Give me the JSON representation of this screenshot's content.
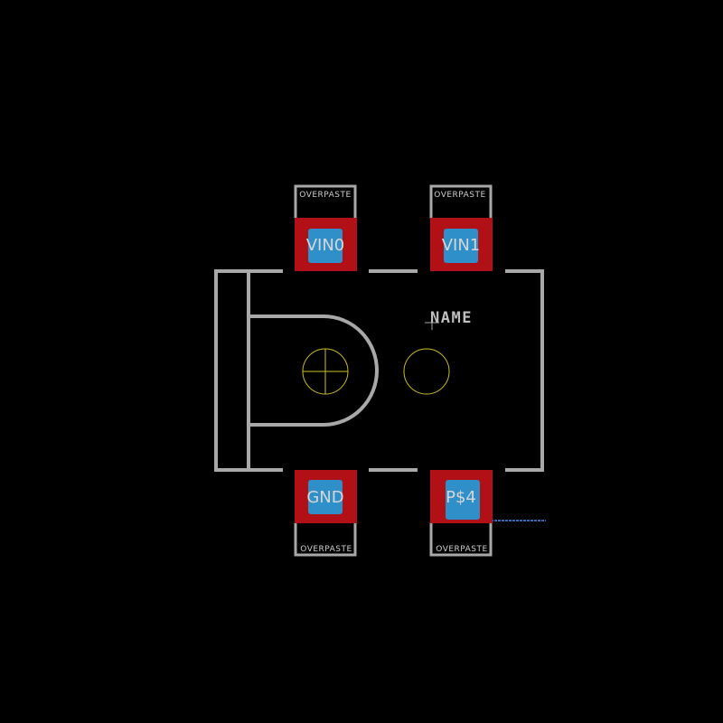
{
  "colors": {
    "background": "#000000",
    "silkscreen": "#a8a8a8",
    "copper_pad": "#b01016",
    "paste": "#2f8fc8",
    "hole_outline": "#c8c020",
    "trace": "#2f6ab0"
  },
  "component": {
    "name_label": "NAME",
    "pads": [
      {
        "id": "vin0",
        "label": "VIN0",
        "paste_label": "OVERPASTE"
      },
      {
        "id": "vin1",
        "label": "VIN1",
        "paste_label": "OVERPASTE"
      },
      {
        "id": "gnd",
        "label": "GND",
        "paste_label": "OVERPASTE"
      },
      {
        "id": "p4",
        "label": "P$4",
        "paste_label": "OVERPASTE"
      }
    ]
  }
}
